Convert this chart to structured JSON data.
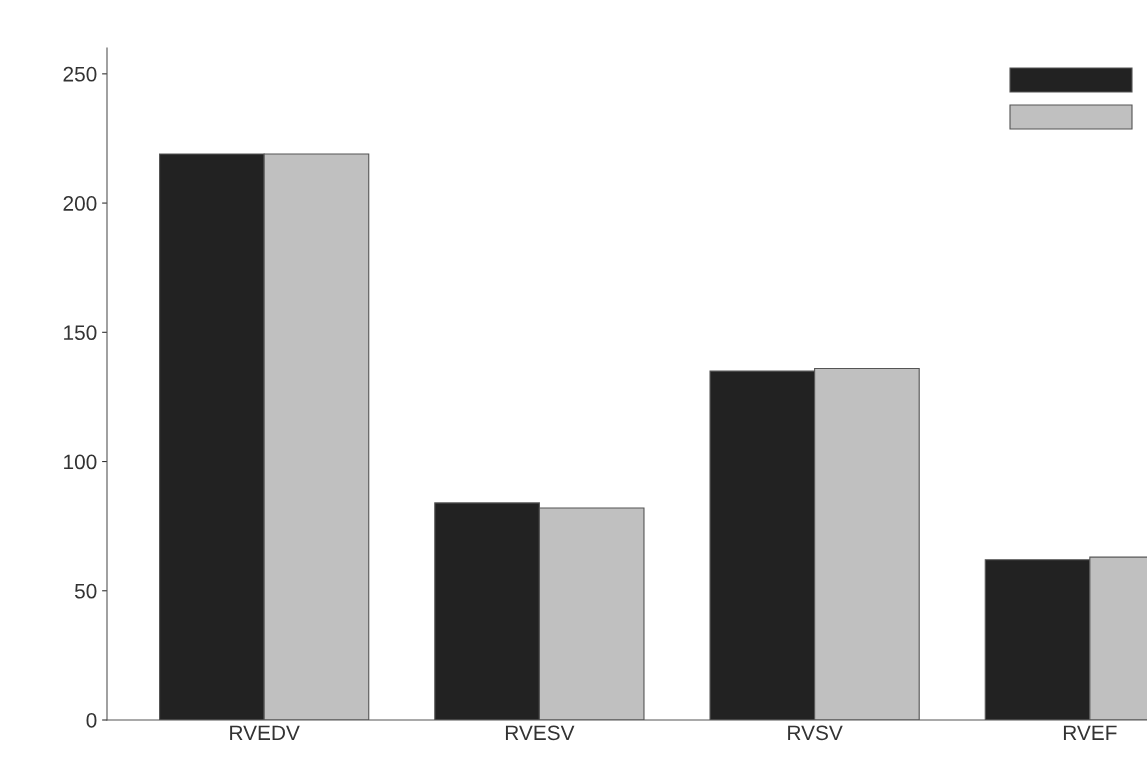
{
  "chart_data": {
    "type": "bar",
    "categories": [
      "RVEDV",
      "RVESV",
      "RVSV",
      "RVEF"
    ],
    "series": [
      {
        "color": "#222222",
        "values": [
          219,
          84,
          135,
          62
        ]
      },
      {
        "color": "#c0c0c0",
        "values": [
          219,
          82,
          136,
          63
        ]
      }
    ],
    "ylim": [
      0,
      260
    ],
    "yticks": [
      0,
      50,
      100,
      150,
      200,
      250
    ],
    "grid": false
  }
}
